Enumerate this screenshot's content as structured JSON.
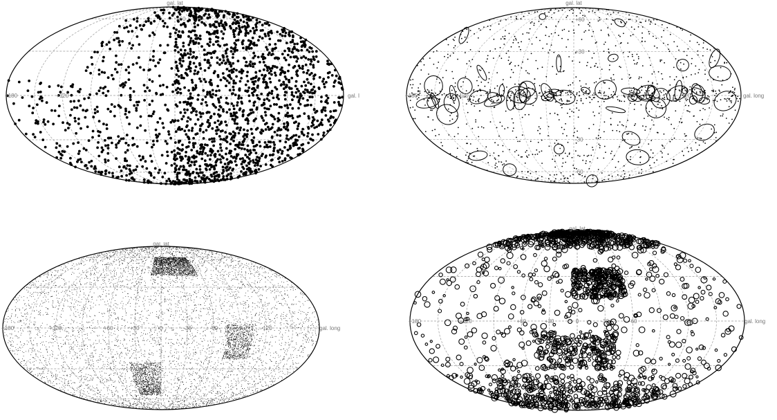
{
  "chart_data": [
    {
      "type": "scatter",
      "projection": "aitoff",
      "axis_labels": {
        "lat": "gal. lat",
        "long": "gal. long"
      },
      "lon_ticks": [
        "+180",
        "+120"
      ],
      "lat_ticks": [
        "+60"
      ],
      "grid": true,
      "marker": "dot",
      "density": "sparse large dots, concentrated toward right half",
      "point_count": 2200,
      "void_region": {
        "lon_range": [
          100,
          180
        ],
        "lat_range": [
          10,
          90
        ]
      },
      "colors": {
        "marker": "#000000",
        "grid": "#9a9a9a",
        "border": "#000000"
      }
    },
    {
      "type": "scatter",
      "projection": "aitoff",
      "axis_labels": {
        "lat": "gal. lat",
        "long": "gal. long"
      },
      "lon_ticks": [
        "+180",
        "+120",
        "+60",
        "-60",
        "-120"
      ],
      "lat_ticks": [
        "+60",
        "+30",
        "-30",
        "-60"
      ],
      "grid": true,
      "marker": "small dots with ellipses",
      "density": "uniform sparse dots, ellipses clustered along galactic plane",
      "point_count": 1300,
      "ellipse_count": 60,
      "colors": {
        "marker": "#000000",
        "grid": "#b0b0b0",
        "border": "#000000"
      }
    },
    {
      "type": "scatter",
      "projection": "aitoff",
      "axis_labels": {
        "lat": "gal. lat",
        "long": "gal. long"
      },
      "lon_ticks": [
        "+180",
        "+120",
        "+60",
        "+30",
        "0",
        "-30",
        "-60",
        "-120"
      ],
      "lat_ticks": [],
      "grid": true,
      "marker": "tiny dots",
      "density": "very dense tiny dots with filament structure",
      "point_count": 9000,
      "colors": {
        "marker": "#000000",
        "grid": "#9a9a9a",
        "border": "#000000"
      }
    },
    {
      "type": "scatter",
      "projection": "aitoff",
      "axis_labels": {
        "lat": "gal. lat",
        "long": "gal. long"
      },
      "lon_ticks": [
        "+180",
        "+120",
        "+60",
        "+30",
        "0",
        "-30",
        "-60",
        "-120"
      ],
      "lat_ticks": [],
      "grid": true,
      "marker": "circles",
      "density": "dense overlapping circles in clustered bands",
      "point_count": 1800,
      "colors": {
        "marker": "#000000",
        "grid": "#9a9a9a",
        "border": "#000000"
      }
    }
  ]
}
